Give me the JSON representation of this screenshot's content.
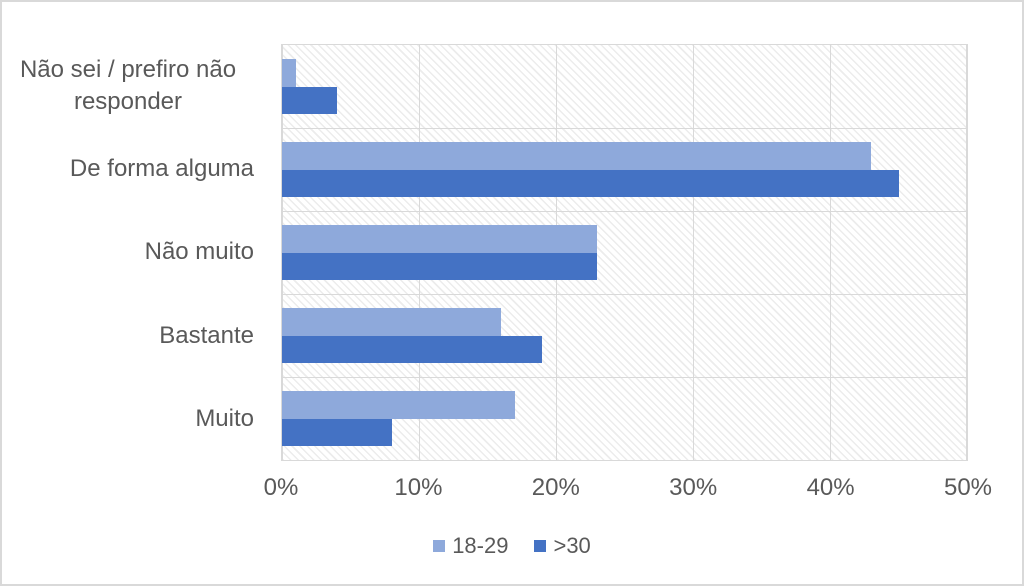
{
  "chart_data": {
    "type": "bar",
    "orientation": "horizontal",
    "title": "",
    "xlabel": "",
    "ylabel": "",
    "categories": [
      "Não sei / prefiro não responder",
      "De forma alguma",
      "Não muito",
      "Bastante",
      "Muito"
    ],
    "series": [
      {
        "name": "18-29",
        "color": "#8EA9DB",
        "values": [
          1,
          43,
          23,
          16,
          17
        ]
      },
      {
        "name": ">30",
        "color": "#4472C4",
        "values": [
          4,
          45,
          23,
          19,
          8
        ]
      }
    ],
    "x_ticks": [
      "0%",
      "10%",
      "20%",
      "30%",
      "40%",
      "50%"
    ],
    "xlim": [
      0,
      50
    ],
    "grid": true,
    "plot_fill_pattern": "light-downward-diagonal-hatch",
    "legend_position": "bottom"
  },
  "colors": {
    "text": "#595959",
    "gridline": "#D9D9D9",
    "plot_border": "#D9D9D9",
    "chart_border": "#D9D9D9",
    "background": "#FFFFFF"
  }
}
